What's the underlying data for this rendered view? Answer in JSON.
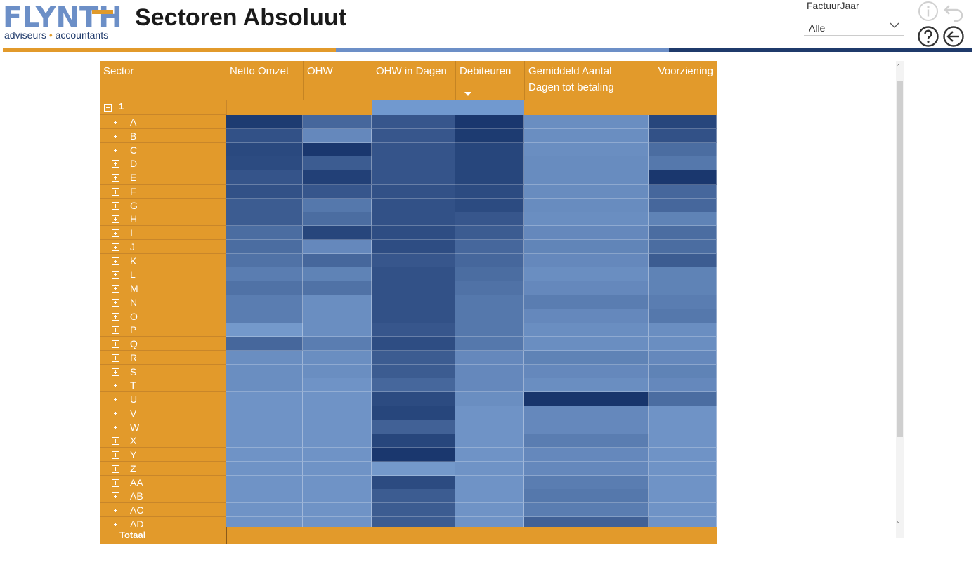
{
  "logo": {
    "main": "FLYNTH",
    "sub_left": "adviseurs",
    "sub_dot": "•",
    "sub_right": "accountants"
  },
  "page": {
    "title": "Sectoren Absoluut"
  },
  "slicer": {
    "label": "FactuurJaar",
    "value": "Alle"
  },
  "colors": {
    "orange": "#e29a2b",
    "light_blue": "#6c8fc7",
    "dark_blue": "#1f3a6b"
  },
  "matrix": {
    "headers": [
      "Sector",
      "Netto Omzet",
      "OHW",
      "OHW in Dagen",
      "Debiteuren",
      "Gemiddeld Aantal Dagen tot betaling",
      "Voorziening"
    ],
    "group_label": "1",
    "sectors": [
      "A",
      "B",
      "C",
      "D",
      "E",
      "F",
      "G",
      "H",
      "I",
      "J",
      "K",
      "L",
      "M",
      "N",
      "O",
      "P",
      "Q",
      "R",
      "S",
      "T",
      "U",
      "V",
      "W",
      "X",
      "Y",
      "Z",
      "AA",
      "AB",
      "AC",
      "AD"
    ],
    "total_label": "Totaal",
    "heat_levels": [
      [
        0.95,
        0.55,
        0.7,
        0.98,
        0.2,
        0.85
      ],
      [
        0.75,
        0.25,
        0.7,
        0.95,
        0.2,
        0.75
      ],
      [
        0.82,
        0.98,
        0.72,
        0.85,
        0.2,
        0.5
      ],
      [
        0.8,
        0.65,
        0.72,
        0.85,
        0.22,
        0.4
      ],
      [
        0.72,
        0.9,
        0.72,
        0.85,
        0.22,
        0.98
      ],
      [
        0.75,
        0.7,
        0.75,
        0.8,
        0.22,
        0.55
      ],
      [
        0.65,
        0.4,
        0.75,
        0.8,
        0.22,
        0.55
      ],
      [
        0.65,
        0.5,
        0.75,
        0.7,
        0.2,
        0.3
      ],
      [
        0.5,
        0.85,
        0.78,
        0.65,
        0.25,
        0.5
      ],
      [
        0.5,
        0.25,
        0.78,
        0.55,
        0.28,
        0.5
      ],
      [
        0.45,
        0.55,
        0.7,
        0.55,
        0.25,
        0.65
      ],
      [
        0.35,
        0.3,
        0.75,
        0.5,
        0.2,
        0.3
      ],
      [
        0.45,
        0.45,
        0.75,
        0.45,
        0.25,
        0.3
      ],
      [
        0.35,
        0.2,
        0.75,
        0.4,
        0.35,
        0.35
      ],
      [
        0.35,
        0.2,
        0.75,
        0.4,
        0.25,
        0.4
      ],
      [
        0.1,
        0.2,
        0.7,
        0.4,
        0.2,
        0.2
      ],
      [
        0.55,
        0.35,
        0.78,
        0.4,
        0.2,
        0.2
      ],
      [
        0.2,
        0.2,
        0.65,
        0.25,
        0.3,
        0.25
      ],
      [
        0.2,
        0.2,
        0.65,
        0.25,
        0.25,
        0.3
      ],
      [
        0.2,
        0.15,
        0.55,
        0.25,
        0.2,
        0.25
      ],
      [
        0.15,
        0.15,
        0.8,
        0.2,
        1.0,
        0.5
      ],
      [
        0.15,
        0.15,
        0.85,
        0.15,
        0.25,
        0.15
      ],
      [
        0.15,
        0.15,
        0.6,
        0.15,
        0.25,
        0.15
      ],
      [
        0.15,
        0.15,
        0.85,
        0.15,
        0.35,
        0.15
      ],
      [
        0.15,
        0.15,
        0.98,
        0.15,
        0.25,
        0.15
      ],
      [
        0.15,
        0.15,
        0.1,
        0.15,
        0.25,
        0.15
      ],
      [
        0.15,
        0.15,
        0.8,
        0.15,
        0.35,
        0.15
      ],
      [
        0.15,
        0.15,
        0.65,
        0.15,
        0.4,
        0.15
      ],
      [
        0.15,
        0.15,
        0.65,
        0.15,
        0.35,
        0.15
      ],
      [
        0.15,
        0.15,
        0.65,
        0.15,
        0.6,
        0.15
      ]
    ]
  },
  "icons": [
    "info-icon",
    "undo-icon",
    "help-icon",
    "back-icon",
    "chevron-down-icon",
    "scroll-up-icon",
    "scroll-down-icon"
  ]
}
